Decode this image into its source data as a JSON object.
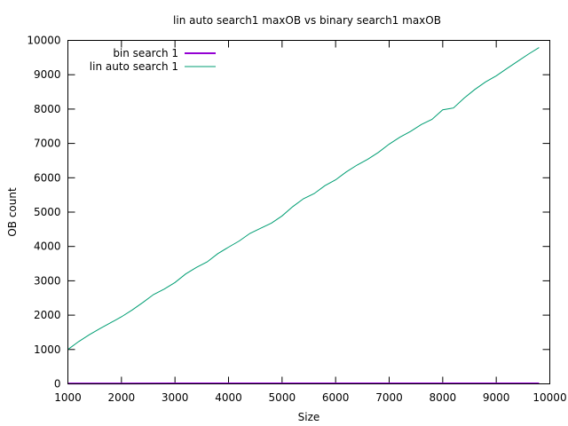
{
  "chart_data": {
    "type": "line",
    "title": "lin auto search1 maxOB vs binary search1 maxOB",
    "xlabel": "Size",
    "ylabel": "OB count",
    "xlim": [
      1000,
      10000
    ],
    "ylim": [
      0,
      10000
    ],
    "x_ticks": [
      1000,
      2000,
      3000,
      4000,
      5000,
      6000,
      7000,
      8000,
      9000,
      10000
    ],
    "y_ticks": [
      0,
      1000,
      2000,
      3000,
      4000,
      5000,
      6000,
      7000,
      8000,
      9000,
      10000
    ],
    "grid": false,
    "legend_position": "top-left",
    "series": [
      {
        "name": "bin search 1",
        "color": "#9400d3",
        "x": [
          1000,
          2000,
          3000,
          4000,
          5000,
          6000,
          7000,
          8000,
          9000,
          9800
        ],
        "values": [
          10,
          11,
          12,
          12,
          13,
          13,
          13,
          13,
          14,
          14
        ]
      },
      {
        "name": "lin auto search 1",
        "color": "#009e73",
        "x": [
          1000,
          1200,
          1400,
          1600,
          1800,
          2000,
          2200,
          2400,
          2600,
          2800,
          3000,
          3200,
          3400,
          3600,
          3800,
          4000,
          4200,
          4400,
          4600,
          4800,
          5000,
          5200,
          5400,
          5600,
          5800,
          6000,
          6200,
          6400,
          6600,
          6800,
          7000,
          7200,
          7400,
          7600,
          7800,
          8000,
          8200,
          8400,
          8600,
          8800,
          9000,
          9200,
          9400,
          9600,
          9800
        ],
        "values": [
          1000,
          1230,
          1430,
          1610,
          1780,
          1950,
          2150,
          2370,
          2600,
          2760,
          2950,
          3200,
          3390,
          3550,
          3790,
          3980,
          4160,
          4380,
          4530,
          4680,
          4890,
          5160,
          5390,
          5540,
          5770,
          5940,
          6170,
          6370,
          6540,
          6740,
          6980,
          7180,
          7350,
          7550,
          7700,
          7980,
          8030,
          8320,
          8570,
          8790,
          8970,
          9180,
          9390,
          9600,
          9790
        ]
      }
    ]
  }
}
